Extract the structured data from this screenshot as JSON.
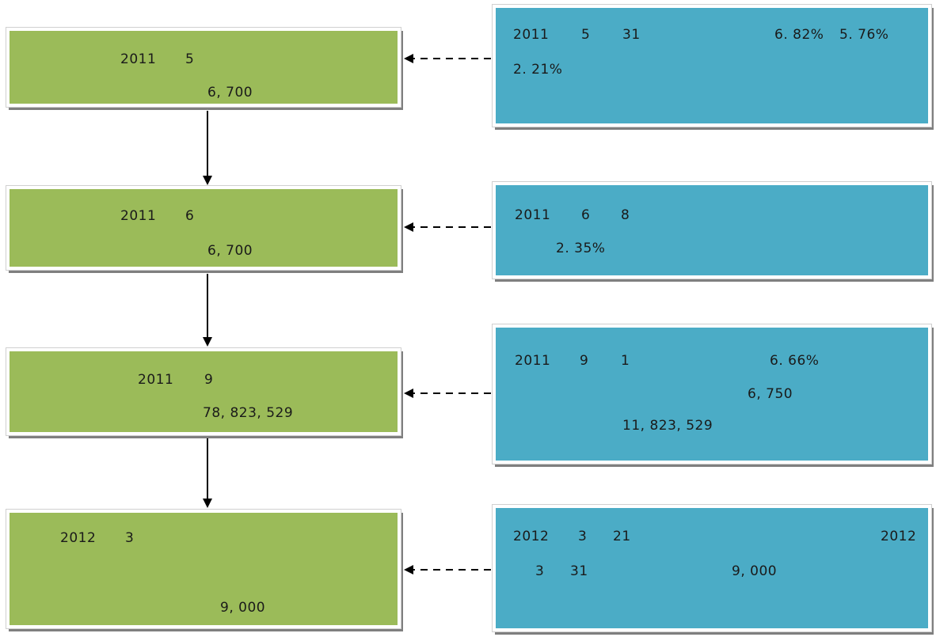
{
  "colors": {
    "green_box": "#9bbb59",
    "blue_box": "#4bacc6",
    "arrow": "#000000"
  },
  "steps": [
    {
      "green": {
        "year": "2011",
        "month": "5",
        "amount": "6, 700"
      },
      "blue": {
        "line1": [
          "2011",
          "5",
          "31",
          "6. 82%",
          "5. 76%"
        ],
        "line2": [
          "2. 21%"
        ]
      }
    },
    {
      "green": {
        "year": "2011",
        "month": "6",
        "amount": "6, 700"
      },
      "blue": {
        "line1": [
          "2011",
          "6",
          "8"
        ],
        "line2": [
          "2. 35%"
        ]
      }
    },
    {
      "green": {
        "year": "2011",
        "month": "9",
        "amount": "78, 823, 529"
      },
      "blue": {
        "line1": [
          "2011",
          "9",
          "1",
          "6. 66%"
        ],
        "line2": [
          "6, 750"
        ],
        "line3": [
          "11, 823, 529"
        ]
      }
    },
    {
      "green": {
        "year": "2012",
        "month": "3",
        "amount": "9, 000"
      },
      "blue": {
        "line1": [
          "2012",
          "3",
          "21",
          "2012"
        ],
        "line2": [
          "3",
          "31",
          "9, 000"
        ]
      }
    }
  ]
}
